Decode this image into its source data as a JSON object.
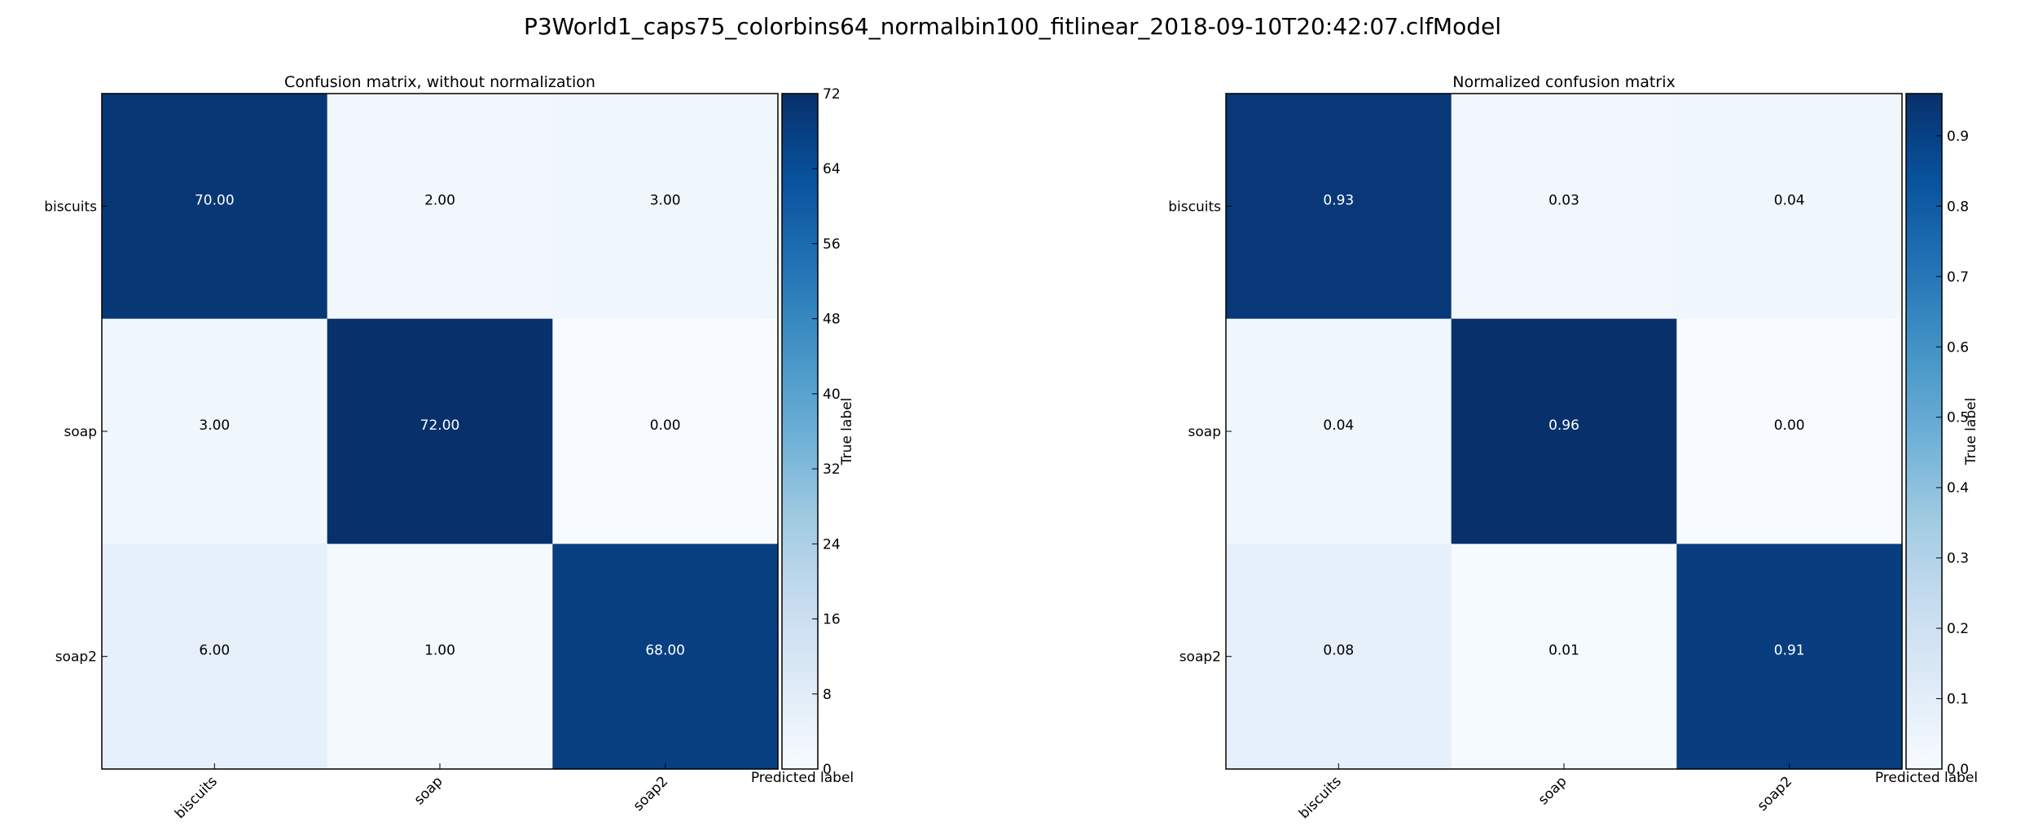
{
  "suptitle": "P3World1_caps75_colorbins64_normalbin100_fitlinear_2018-09-10T20:42:07.clfModel",
  "chart_data": [
    {
      "type": "heatmap",
      "title": "Confusion matrix, without normalization",
      "xlabel": "Predicted label",
      "ylabel": "True label",
      "row_labels": [
        "biscuits",
        "soap",
        "soap2"
      ],
      "col_labels": [
        "biscuits",
        "soap",
        "soap2"
      ],
      "values": [
        [
          70,
          2,
          3
        ],
        [
          3,
          72,
          0
        ],
        [
          6,
          1,
          68
        ]
      ],
      "cell_text": [
        [
          "70.00",
          "2.00",
          "3.00"
        ],
        [
          "3.00",
          "72.00",
          "0.00"
        ],
        [
          "6.00",
          "1.00",
          "68.00"
        ]
      ],
      "colormap": "Blues",
      "color_range": [
        0,
        72
      ],
      "colorbar_ticks": [
        "0",
        "8",
        "16",
        "24",
        "32",
        "40",
        "48",
        "56",
        "64",
        "72"
      ]
    },
    {
      "type": "heatmap",
      "title": "Normalized confusion matrix",
      "xlabel": "Predicted label",
      "ylabel": "True label",
      "row_labels": [
        "biscuits",
        "soap",
        "soap2"
      ],
      "col_labels": [
        "biscuits",
        "soap",
        "soap2"
      ],
      "values": [
        [
          0.93,
          0.03,
          0.04
        ],
        [
          0.04,
          0.96,
          0.0
        ],
        [
          0.08,
          0.01,
          0.91
        ]
      ],
      "cell_text": [
        [
          "0.93",
          "0.03",
          "0.04"
        ],
        [
          "0.04",
          "0.96",
          "0.00"
        ],
        [
          "0.08",
          "0.01",
          "0.91"
        ]
      ],
      "colormap": "Blues",
      "color_range": [
        0,
        0.96
      ],
      "colorbar_ticks": [
        "0.0",
        "0.1",
        "0.2",
        "0.3",
        "0.4",
        "0.5",
        "0.6",
        "0.7",
        "0.8",
        "0.9"
      ]
    }
  ]
}
